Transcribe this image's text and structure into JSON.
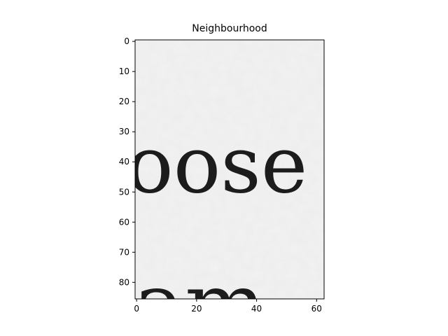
{
  "chart_data": {
    "type": "heatmap",
    "title": "Neighbourhood",
    "xlabel": "",
    "ylabel": "",
    "xlim": [
      -0.5,
      62.5
    ],
    "ylim": [
      85.5,
      -0.5
    ],
    "x_ticks": [
      0,
      20,
      40,
      60
    ],
    "y_ticks": [
      0,
      10,
      20,
      30,
      40,
      50,
      60,
      70,
      80
    ],
    "colormap": "gray",
    "image_content": "grayscale crop of a scanned text page",
    "visible_text": [
      {
        "text": "oose",
        "row_center": 40
      },
      {
        "text": "am-",
        "row_center": 86
      }
    ],
    "background_color": "#f2f2f2",
    "ink_color": "#1c1c1c"
  }
}
